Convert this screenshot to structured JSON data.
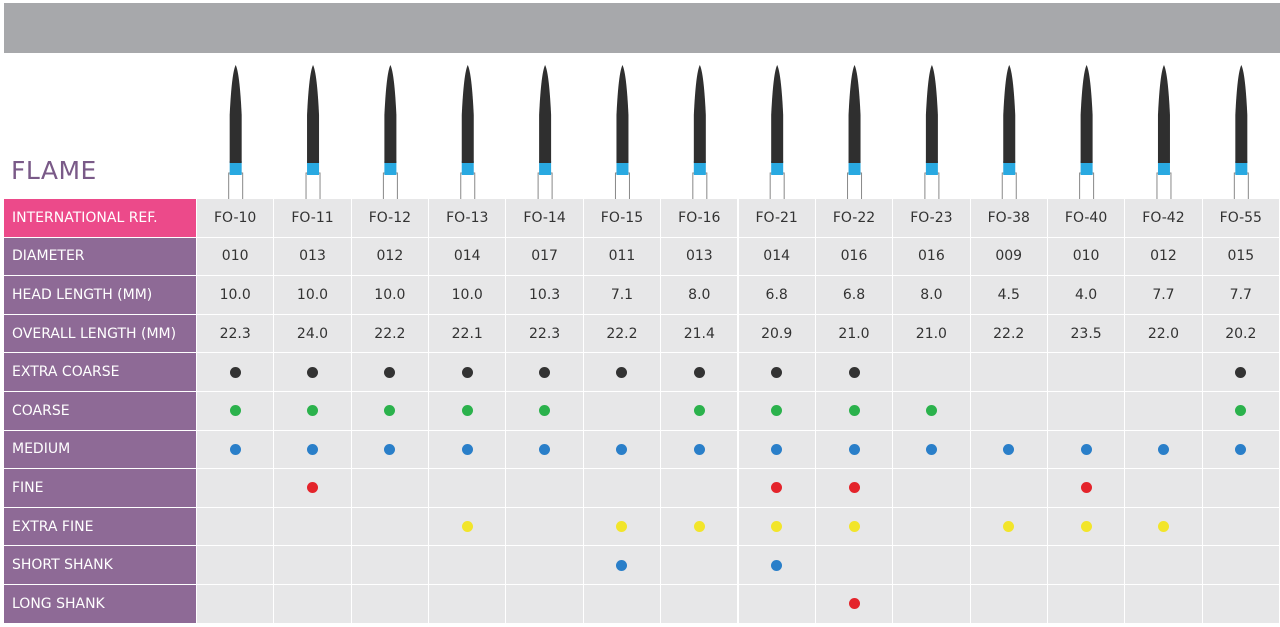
{
  "header": {
    "title": "FLAME"
  },
  "table": {
    "ref_label": "INTERNATIONAL REF.",
    "refs": [
      "FO-10",
      "FO-11",
      "FO-12",
      "FO-13",
      "FO-14",
      "FO-15",
      "FO-16",
      "FO-21",
      "FO-22",
      "FO-23",
      "FO-38",
      "FO-40",
      "FO-42",
      "FO-55"
    ],
    "text_rows": [
      {
        "label": "DIAMETER",
        "cells": [
          "010",
          "013",
          "012",
          "014",
          "017",
          "011",
          "013",
          "014",
          "016",
          "016",
          "009",
          "010",
          "012",
          "015"
        ]
      },
      {
        "label": "HEAD LENGTH (MM)",
        "cells": [
          "10.0",
          "10.0",
          "10.0",
          "10.0",
          "10.3",
          "7.1",
          "8.0",
          "6.8",
          "6.8",
          "8.0",
          "4.5",
          "4.0",
          "7.7",
          "7.7"
        ]
      },
      {
        "label": "OVERALL LENGTH (MM)",
        "cells": [
          "22.3",
          "24.0",
          "22.2",
          "22.1",
          "22.3",
          "22.2",
          "21.4",
          "20.9",
          "21.0",
          "21.0",
          "22.2",
          "23.5",
          "22.0",
          "20.2"
        ]
      }
    ],
    "dot_rows": [
      {
        "label": "EXTRA COARSE",
        "color": "#333333",
        "marks": [
          true,
          true,
          true,
          true,
          true,
          true,
          true,
          true,
          true,
          false,
          false,
          false,
          false,
          true
        ]
      },
      {
        "label": "COARSE",
        "color": "#2bb24c",
        "marks": [
          true,
          true,
          true,
          true,
          true,
          false,
          true,
          true,
          true,
          true,
          false,
          false,
          false,
          true
        ]
      },
      {
        "label": "MEDIUM",
        "color": "#2a7fc9",
        "marks": [
          true,
          true,
          true,
          true,
          true,
          true,
          true,
          true,
          true,
          true,
          true,
          true,
          true,
          true
        ]
      },
      {
        "label": "FINE",
        "color": "#e4242b",
        "marks": [
          false,
          true,
          false,
          false,
          false,
          false,
          false,
          true,
          true,
          false,
          false,
          true,
          false,
          false
        ]
      },
      {
        "label": "EXTRA FINE",
        "color": "#f2e52a",
        "marks": [
          false,
          false,
          false,
          true,
          false,
          true,
          true,
          true,
          true,
          false,
          true,
          true,
          true,
          false
        ]
      },
      {
        "label": "SHORT SHANK",
        "color": "#2a7fc9",
        "marks": [
          false,
          false,
          false,
          false,
          false,
          true,
          false,
          true,
          false,
          false,
          false,
          false,
          false,
          false
        ]
      },
      {
        "label": "LONG SHANK",
        "color": "#e4242b",
        "marks": [
          false,
          false,
          false,
          false,
          false,
          false,
          false,
          false,
          true,
          false,
          false,
          false,
          false,
          false
        ]
      }
    ]
  }
}
